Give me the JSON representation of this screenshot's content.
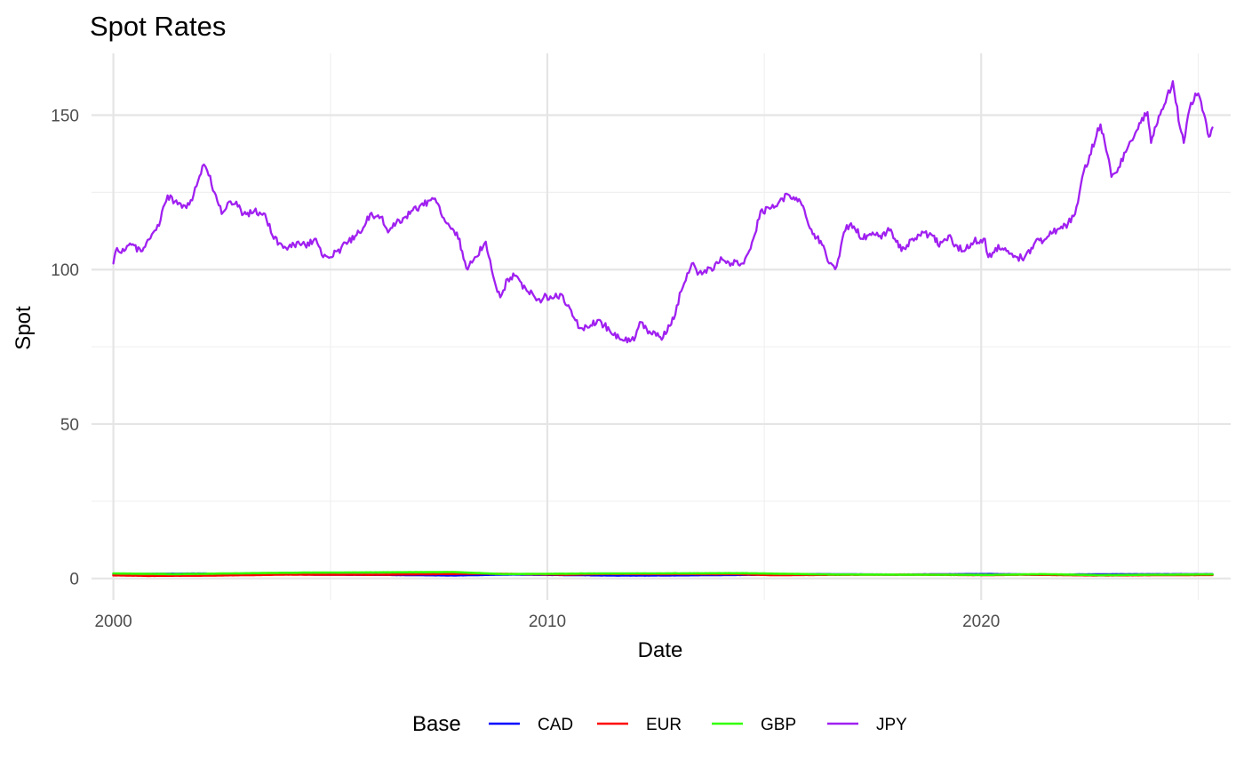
{
  "chart_data": {
    "type": "line",
    "title": "Spot Rates",
    "xlabel": "Date",
    "ylabel": "Spot",
    "xlim": [
      "1999-07-01",
      "2025-10-01"
    ],
    "ylim": [
      -7,
      170
    ],
    "x_ticks": [
      "2000",
      "2010",
      "2020"
    ],
    "y_ticks": [
      0,
      50,
      100,
      150
    ],
    "grid": true,
    "legend_title": "Base",
    "legend_position": "bottom",
    "series": [
      {
        "name": "CAD",
        "color": "#0000FF",
        "points": [
          [
            "2000-01-01",
            1.45
          ],
          [
            "2002-01-01",
            1.57
          ],
          [
            "2004-01-01",
            1.3
          ],
          [
            "2006-01-01",
            1.16
          ],
          [
            "2007-11-01",
            0.98
          ],
          [
            "2009-03-01",
            1.27
          ],
          [
            "2011-07-01",
            0.96
          ],
          [
            "2013-01-01",
            0.99
          ],
          [
            "2015-01-01",
            1.2
          ],
          [
            "2016-01-01",
            1.4
          ],
          [
            "2018-01-01",
            1.25
          ],
          [
            "2020-03-01",
            1.42
          ],
          [
            "2021-06-01",
            1.22
          ],
          [
            "2023-01-01",
            1.35
          ],
          [
            "2025-05-01",
            1.38
          ]
        ]
      },
      {
        "name": "EUR",
        "color": "#FF0000",
        "points": [
          [
            "2000-01-01",
            1.01
          ],
          [
            "2000-10-01",
            0.85
          ],
          [
            "2002-01-01",
            0.89
          ],
          [
            "2004-01-01",
            1.25
          ],
          [
            "2006-01-01",
            1.2
          ],
          [
            "2008-07-01",
            1.57
          ],
          [
            "2010-06-01",
            1.22
          ],
          [
            "2011-05-01",
            1.45
          ],
          [
            "2014-05-01",
            1.39
          ],
          [
            "2015-03-01",
            1.08
          ],
          [
            "2018-02-01",
            1.24
          ],
          [
            "2020-03-01",
            1.08
          ],
          [
            "2021-01-01",
            1.22
          ],
          [
            "2022-09-01",
            0.98
          ],
          [
            "2025-05-01",
            1.13
          ]
        ]
      },
      {
        "name": "GBP",
        "color": "#33FF00",
        "points": [
          [
            "2000-01-01",
            1.62
          ],
          [
            "2001-06-01",
            1.4
          ],
          [
            "2004-01-01",
            1.85
          ],
          [
            "2007-11-01",
            2.08
          ],
          [
            "2009-01-01",
            1.4
          ],
          [
            "2011-01-01",
            1.6
          ],
          [
            "2014-07-01",
            1.71
          ],
          [
            "2016-07-01",
            1.3
          ],
          [
            "2020-03-01",
            1.15
          ],
          [
            "2021-06-01",
            1.4
          ],
          [
            "2022-09-01",
            1.07
          ],
          [
            "2025-05-01",
            1.33
          ]
        ]
      },
      {
        "name": "JPY",
        "color": "#A020F0",
        "points": [
          [
            "2000-01-01",
            102
          ],
          [
            "2000-02-01",
            107
          ],
          [
            "2000-04-01",
            106
          ],
          [
            "2000-06-01",
            108
          ],
          [
            "2000-09-01",
            106
          ],
          [
            "2000-12-01",
            112
          ],
          [
            "2001-02-01",
            116
          ],
          [
            "2001-04-01",
            124
          ],
          [
            "2001-06-01",
            122
          ],
          [
            "2001-08-01",
            120
          ],
          [
            "2001-10-01",
            121
          ],
          [
            "2001-12-01",
            127
          ],
          [
            "2002-02-01",
            134
          ],
          [
            "2002-03-01",
            132
          ],
          [
            "2002-05-01",
            125
          ],
          [
            "2002-07-01",
            118
          ],
          [
            "2002-09-01",
            122
          ],
          [
            "2002-11-01",
            122
          ],
          [
            "2003-01-01",
            118
          ],
          [
            "2003-04-01",
            119
          ],
          [
            "2003-07-01",
            118
          ],
          [
            "2003-09-01",
            111
          ],
          [
            "2003-12-01",
            107
          ],
          [
            "2004-03-01",
            108
          ],
          [
            "2004-06-01",
            108
          ],
          [
            "2004-09-01",
            110
          ],
          [
            "2004-11-01",
            104
          ],
          [
            "2005-01-01",
            104
          ],
          [
            "2005-04-01",
            107
          ],
          [
            "2005-06-01",
            109
          ],
          [
            "2005-09-01",
            112
          ],
          [
            "2005-12-01",
            118
          ],
          [
            "2006-03-01",
            117
          ],
          [
            "2006-05-01",
            112
          ],
          [
            "2006-08-01",
            116
          ],
          [
            "2006-11-01",
            118
          ],
          [
            "2007-02-01",
            121
          ],
          [
            "2007-06-01",
            123
          ],
          [
            "2007-08-01",
            117
          ],
          [
            "2007-10-01",
            114
          ],
          [
            "2007-12-01",
            112
          ],
          [
            "2008-03-01",
            100
          ],
          [
            "2008-05-01",
            104
          ],
          [
            "2008-08-01",
            109
          ],
          [
            "2008-10-01",
            98
          ],
          [
            "2008-12-01",
            91
          ],
          [
            "2009-02-01",
            97
          ],
          [
            "2009-04-01",
            98
          ],
          [
            "2009-07-01",
            94
          ],
          [
            "2009-10-01",
            90
          ],
          [
            "2009-12-01",
            91
          ],
          [
            "2010-03-01",
            91
          ],
          [
            "2010-05-01",
            92
          ],
          [
            "2010-08-01",
            85
          ],
          [
            "2010-10-01",
            81
          ],
          [
            "2011-01-01",
            82
          ],
          [
            "2011-04-01",
            83
          ],
          [
            "2011-07-01",
            79
          ],
          [
            "2011-10-01",
            77
          ],
          [
            "2012-01-01",
            77
          ],
          [
            "2012-03-01",
            83
          ],
          [
            "2012-06-01",
            79
          ],
          [
            "2012-09-01",
            78
          ],
          [
            "2012-12-01",
            84
          ],
          [
            "2013-02-01",
            93
          ],
          [
            "2013-05-01",
            102
          ],
          [
            "2013-07-01",
            99
          ],
          [
            "2013-11-01",
            100
          ],
          [
            "2014-01-01",
            104
          ],
          [
            "2014-04-01",
            102
          ],
          [
            "2014-07-01",
            102
          ],
          [
            "2014-10-01",
            110
          ],
          [
            "2014-12-01",
            119
          ],
          [
            "2015-03-01",
            120
          ],
          [
            "2015-06-01",
            123
          ],
          [
            "2015-08-01",
            124
          ],
          [
            "2015-11-01",
            122
          ],
          [
            "2016-02-01",
            113
          ],
          [
            "2016-05-01",
            108
          ],
          [
            "2016-07-01",
            102
          ],
          [
            "2016-09-01",
            101
          ],
          [
            "2016-11-01",
            112
          ],
          [
            "2017-01-01",
            115
          ],
          [
            "2017-04-01",
            110
          ],
          [
            "2017-07-01",
            112
          ],
          [
            "2017-09-01",
            111
          ],
          [
            "2017-12-01",
            113
          ],
          [
            "2018-03-01",
            106
          ],
          [
            "2018-06-01",
            110
          ],
          [
            "2018-09-01",
            112
          ],
          [
            "2018-12-01",
            111
          ],
          [
            "2019-01-01",
            108
          ],
          [
            "2019-04-01",
            111
          ],
          [
            "2019-06-01",
            108
          ],
          [
            "2019-08-01",
            106
          ],
          [
            "2019-11-01",
            109
          ],
          [
            "2020-02-01",
            110
          ],
          [
            "2020-03-01",
            104
          ],
          [
            "2020-05-01",
            107
          ],
          [
            "2020-08-01",
            106
          ],
          [
            "2020-11-01",
            104
          ],
          [
            "2021-01-01",
            104
          ],
          [
            "2021-04-01",
            109
          ],
          [
            "2021-07-01",
            110
          ],
          [
            "2021-10-01",
            113
          ],
          [
            "2022-01-01",
            115
          ],
          [
            "2022-03-01",
            118
          ],
          [
            "2022-05-01",
            130
          ],
          [
            "2022-07-01",
            137
          ],
          [
            "2022-10-01",
            147
          ],
          [
            "2022-12-01",
            137
          ],
          [
            "2023-01-01",
            130
          ],
          [
            "2023-03-01",
            133
          ],
          [
            "2023-05-01",
            138
          ],
          [
            "2023-08-01",
            145
          ],
          [
            "2023-11-01",
            151
          ],
          [
            "2023-12-01",
            141
          ],
          [
            "2024-01-01",
            146
          ],
          [
            "2024-04-01",
            154
          ],
          [
            "2024-06-01",
            161
          ],
          [
            "2024-08-01",
            146
          ],
          [
            "2024-09-01",
            141
          ],
          [
            "2024-11-01",
            154
          ],
          [
            "2025-01-01",
            157
          ],
          [
            "2025-03-01",
            149
          ],
          [
            "2025-04-01",
            143
          ],
          [
            "2025-05-01",
            146
          ]
        ]
      }
    ]
  }
}
